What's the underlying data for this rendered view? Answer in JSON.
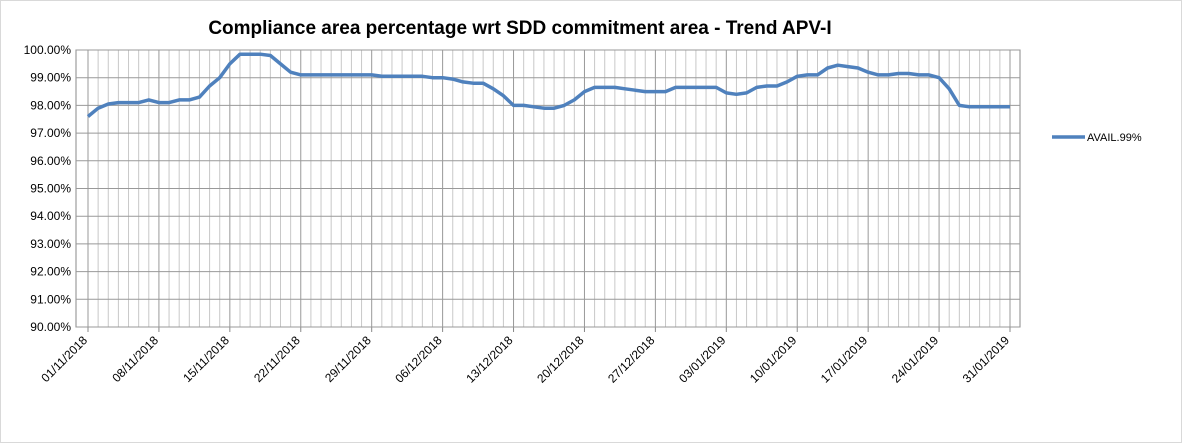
{
  "chart_data": {
    "type": "line",
    "title": "Compliance area percentage wrt SDD commitment area - Trend APV-I",
    "categories": [
      "01/11/2018",
      null,
      null,
      null,
      null,
      null,
      null,
      "08/11/2018",
      null,
      null,
      null,
      null,
      null,
      null,
      "15/11/2018",
      null,
      null,
      null,
      null,
      null,
      null,
      "22/11/2018",
      null,
      null,
      null,
      null,
      null,
      null,
      "29/11/2018",
      null,
      null,
      null,
      null,
      null,
      null,
      "06/12/2018",
      null,
      null,
      null,
      null,
      null,
      null,
      "13/12/2018",
      null,
      null,
      null,
      null,
      null,
      null,
      "20/12/2018",
      null,
      null,
      null,
      null,
      null,
      null,
      "27/12/2018",
      null,
      null,
      null,
      null,
      null,
      null,
      "03/01/2019",
      null,
      null,
      null,
      null,
      null,
      null,
      "10/01/2019",
      null,
      null,
      null,
      null,
      null,
      null,
      "17/01/2019",
      null,
      null,
      null,
      null,
      null,
      null,
      "24/01/2019",
      null,
      null,
      null,
      null,
      null,
      null,
      "31/01/2019"
    ],
    "series": [
      {
        "name": "AVAIL.99%",
        "color": "#4f81bd",
        "values": [
          97.6,
          97.9,
          98.05,
          98.1,
          98.1,
          98.1,
          98.2,
          98.1,
          98.1,
          98.2,
          98.2,
          98.3,
          98.7,
          99.0,
          99.5,
          99.85,
          99.85,
          99.85,
          99.8,
          99.5,
          99.2,
          99.1,
          99.1,
          99.1,
          99.1,
          99.1,
          99.1,
          99.1,
          99.1,
          99.05,
          99.05,
          99.05,
          99.05,
          99.05,
          99.0,
          99.0,
          98.95,
          98.85,
          98.8,
          98.8,
          98.6,
          98.35,
          98.0,
          98.0,
          97.95,
          97.9,
          97.9,
          98.0,
          98.2,
          98.5,
          98.65,
          98.65,
          98.65,
          98.6,
          98.55,
          98.5,
          98.5,
          98.5,
          98.65,
          98.65,
          98.65,
          98.65,
          98.65,
          98.45,
          98.4,
          98.45,
          98.65,
          98.7,
          98.7,
          98.85,
          99.05,
          99.1,
          99.1,
          99.35,
          99.45,
          99.4,
          99.35,
          99.2,
          99.1,
          99.1,
          99.15,
          99.15,
          99.1,
          99.1,
          99.0,
          98.6,
          98.0,
          97.95,
          97.95,
          97.95,
          97.95,
          97.95
        ]
      }
    ],
    "ylim": [
      90,
      100
    ],
    "yticks": [
      {
        "value": 90,
        "label": "90.00%"
      },
      {
        "value": 91,
        "label": "91.00%"
      },
      {
        "value": 92,
        "label": "92.00%"
      },
      {
        "value": 93,
        "label": "93.00%"
      },
      {
        "value": 94,
        "label": "94.00%"
      },
      {
        "value": 95,
        "label": "95.00%"
      },
      {
        "value": 96,
        "label": "96.00%"
      },
      {
        "value": 97,
        "label": "97.00%"
      },
      {
        "value": 98,
        "label": "98.00%"
      },
      {
        "value": 99,
        "label": "99.00%"
      },
      {
        "value": 100,
        "label": "100.00%"
      }
    ],
    "grid": true,
    "legend": "right"
  }
}
